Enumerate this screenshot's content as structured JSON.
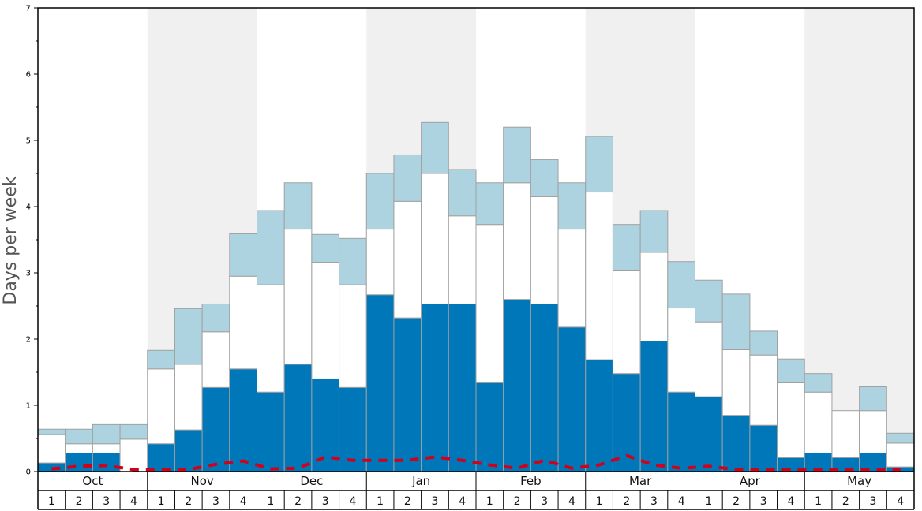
{
  "chart_data": {
    "type": "bar",
    "ylabel": "Days per week",
    "ylim": [
      0,
      7
    ],
    "y_ticks": [
      "0",
      "1",
      "2",
      "3",
      "4",
      "5",
      "6",
      "7"
    ],
    "months": [
      "Oct",
      "Nov",
      "Dec",
      "Jan",
      "Feb",
      "Mar",
      "Apr",
      "May"
    ],
    "weeks": [
      "1",
      "2",
      "3",
      "4"
    ],
    "categories": [
      "Oct 1",
      "Oct 2",
      "Oct 3",
      "Oct 4",
      "Nov 1",
      "Nov 2",
      "Nov 3",
      "Nov 4",
      "Dec 1",
      "Dec 2",
      "Dec 3",
      "Dec 4",
      "Jan 1",
      "Jan 2",
      "Jan 3",
      "Jan 4",
      "Feb 1",
      "Feb 2",
      "Feb 3",
      "Feb 4",
      "Mar 1",
      "Mar 2",
      "Mar 3",
      "Mar 4",
      "Apr 1",
      "Apr 2",
      "Apr 3",
      "Apr 4",
      "May 1",
      "May 2",
      "May 3",
      "May 4"
    ],
    "series": [
      {
        "color": "#0077b8",
        "values": [
          0.13,
          0.28,
          0.28,
          0.0,
          0.42,
          0.63,
          1.27,
          1.55,
          1.2,
          1.62,
          1.4,
          1.27,
          2.67,
          2.32,
          2.53,
          2.53,
          1.34,
          2.6,
          2.53,
          2.18,
          1.69,
          1.48,
          1.97,
          1.2,
          1.13,
          0.85,
          0.7,
          0.21,
          0.28,
          0.21,
          0.28,
          0.07
        ]
      },
      {
        "color": "#ffffff",
        "values": [
          0.43,
          0.14,
          0.14,
          0.49,
          1.13,
          0.99,
          0.84,
          1.4,
          1.62,
          2.04,
          1.76,
          1.55,
          0.99,
          1.76,
          1.97,
          1.33,
          2.39,
          1.76,
          1.62,
          1.48,
          2.53,
          1.55,
          1.34,
          1.27,
          1.13,
          0.99,
          1.06,
          1.13,
          0.92,
          0.71,
          0.64,
          0.36
        ]
      },
      {
        "color": "#aed3e0",
        "values": [
          0.08,
          0.22,
          0.29,
          0.22,
          0.28,
          0.84,
          0.42,
          0.64,
          1.12,
          0.7,
          0.42,
          0.7,
          0.84,
          0.7,
          0.77,
          0.7,
          0.63,
          0.84,
          0.56,
          0.7,
          0.84,
          0.7,
          0.63,
          0.7,
          0.63,
          0.84,
          0.36,
          0.36,
          0.28,
          0.0,
          0.36,
          0.15
        ]
      }
    ],
    "line": {
      "color": "#d0021b",
      "values": [
        0.04,
        0.08,
        0.09,
        0.03,
        0.03,
        0.03,
        0.11,
        0.16,
        0.04,
        0.05,
        0.22,
        0.17,
        0.17,
        0.17,
        0.22,
        0.17,
        0.1,
        0.05,
        0.17,
        0.05,
        0.1,
        0.24,
        0.1,
        0.05,
        0.08,
        0.03,
        0.03,
        0.03,
        0.03,
        0.03,
        0.03,
        0.03
      ]
    },
    "colors": {
      "band_shade": "#f0f0f0",
      "bar_border": "#a0a0a0",
      "axis": "#000000"
    },
    "grid": false
  }
}
